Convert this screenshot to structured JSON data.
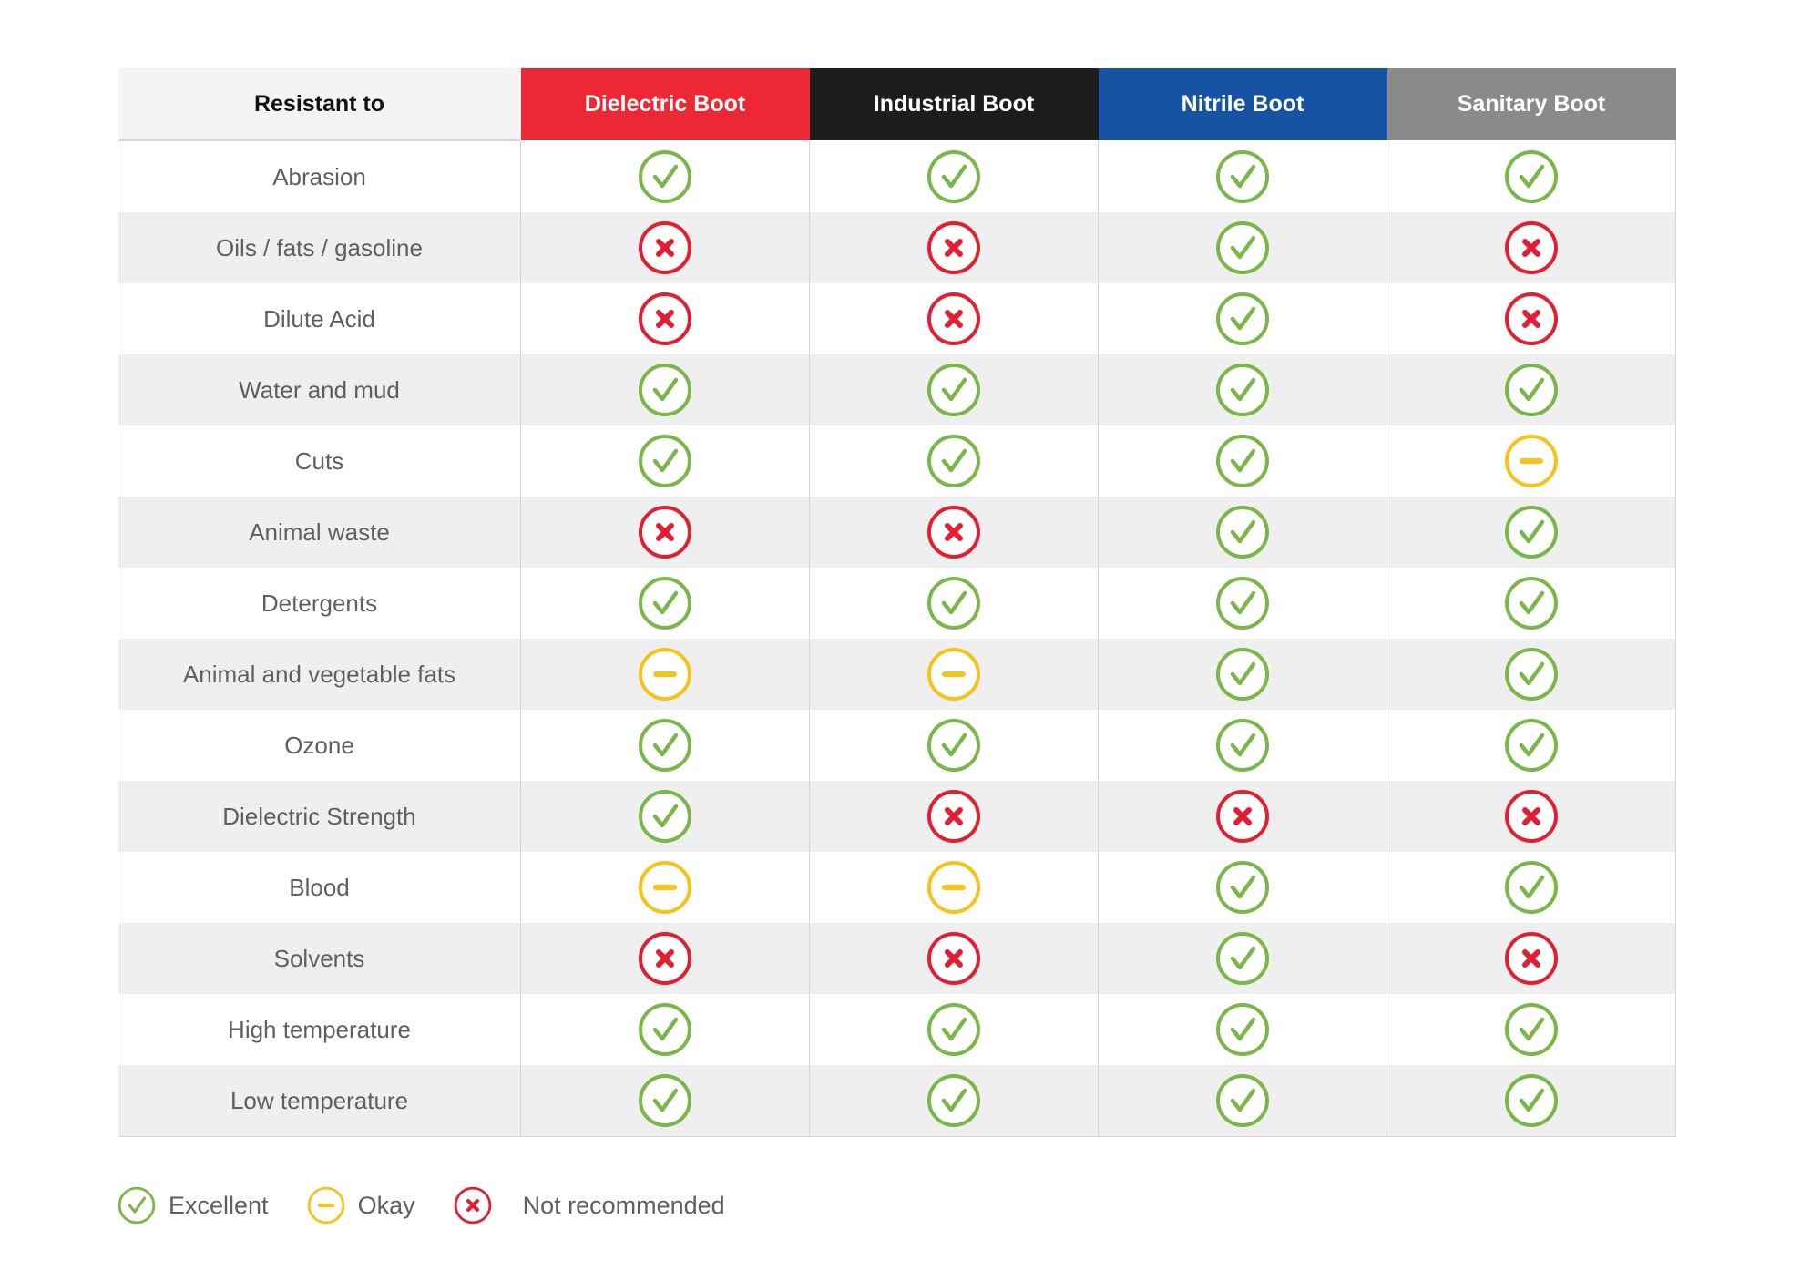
{
  "colors": {
    "excellent": "#7ab648",
    "okay": "#f6c21b",
    "not_recommended": "#e21f32",
    "header_columns": [
      "#f4f4f4",
      "#ee2734",
      "#1d1d1d",
      "#1753a3",
      "#8a8a8a"
    ]
  },
  "table": {
    "headers": [
      "Resistant to",
      "Dielectric Boot",
      "Industrial Boot",
      "Nitrile Boot",
      "Sanitary Boot"
    ],
    "rows": [
      {
        "label": "Abrasion",
        "ratings": [
          "excellent",
          "excellent",
          "excellent",
          "excellent"
        ]
      },
      {
        "label": "Oils / fats / gasoline",
        "ratings": [
          "not_recommended",
          "not_recommended",
          "excellent",
          "not_recommended"
        ]
      },
      {
        "label": "Dilute Acid",
        "ratings": [
          "not_recommended",
          "not_recommended",
          "excellent",
          "not_recommended"
        ]
      },
      {
        "label": "Water and mud",
        "ratings": [
          "excellent",
          "excellent",
          "excellent",
          "excellent"
        ]
      },
      {
        "label": "Cuts",
        "ratings": [
          "excellent",
          "excellent",
          "excellent",
          "okay"
        ]
      },
      {
        "label": "Animal waste",
        "ratings": [
          "not_recommended",
          "not_recommended",
          "excellent",
          "excellent"
        ]
      },
      {
        "label": "Detergents",
        "ratings": [
          "excellent",
          "excellent",
          "excellent",
          "excellent"
        ]
      },
      {
        "label": "Animal and vegetable fats",
        "ratings": [
          "okay",
          "okay",
          "excellent",
          "excellent"
        ]
      },
      {
        "label": "Ozone",
        "ratings": [
          "excellent",
          "excellent",
          "excellent",
          "excellent"
        ]
      },
      {
        "label": "Dielectric Strength",
        "ratings": [
          "excellent",
          "not_recommended",
          "not_recommended",
          "not_recommended"
        ]
      },
      {
        "label": "Blood",
        "ratings": [
          "okay",
          "okay",
          "excellent",
          "excellent"
        ]
      },
      {
        "label": "Solvents",
        "ratings": [
          "not_recommended",
          "not_recommended",
          "excellent",
          "not_recommended"
        ]
      },
      {
        "label": "High temperature",
        "ratings": [
          "excellent",
          "excellent",
          "excellent",
          "excellent"
        ]
      },
      {
        "label": "Low temperature",
        "ratings": [
          "excellent",
          "excellent",
          "excellent",
          "excellent"
        ]
      }
    ]
  },
  "legend": [
    {
      "rating": "excellent",
      "label": "Excellent"
    },
    {
      "rating": "okay",
      "label": "Okay"
    },
    {
      "rating": "not_recommended",
      "label": "Not recommended"
    }
  ],
  "icons": {
    "excellent": "check-circle-icon",
    "okay": "minus-circle-icon",
    "not_recommended": "x-circle-icon"
  }
}
